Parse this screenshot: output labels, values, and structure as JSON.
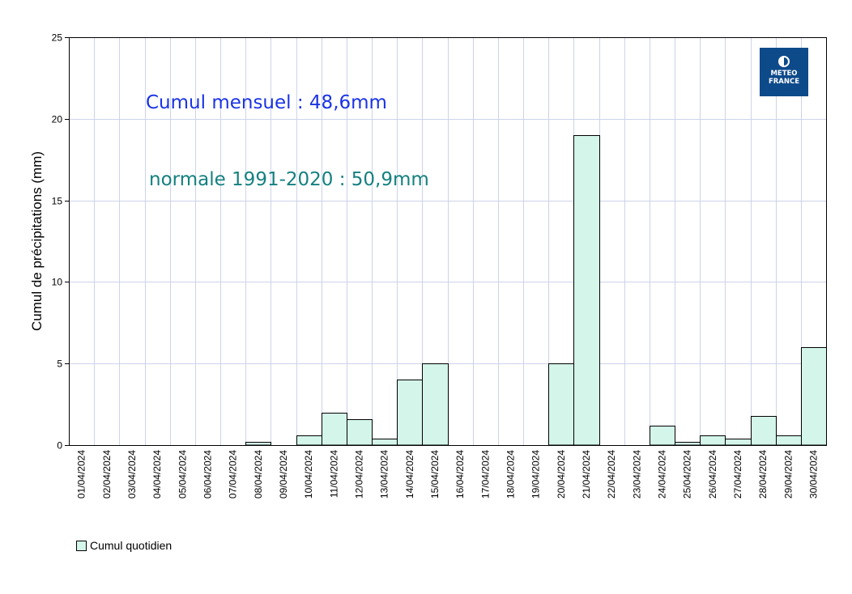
{
  "chart_data": {
    "type": "bar",
    "title": "",
    "xlabel": "",
    "ylabel": "Cumul de précipitations (mm)",
    "ylim": [
      0,
      25
    ],
    "yticks": [
      0,
      5,
      10,
      15,
      20,
      25
    ],
    "grid": true,
    "legend_position": "bottom-left",
    "categories": [
      "01/04/2024",
      "02/04/2024",
      "03/04/2024",
      "04/04/2024",
      "05/04/2024",
      "06/04/2024",
      "07/04/2024",
      "08/04/2024",
      "09/04/2024",
      "10/04/2024",
      "11/04/2024",
      "12/04/2024",
      "13/04/2024",
      "14/04/2024",
      "15/04/2024",
      "16/04/2024",
      "17/04/2024",
      "18/04/2024",
      "19/04/2024",
      "20/04/2024",
      "21/04/2024",
      "22/04/2024",
      "23/04/2024",
      "24/04/2024",
      "25/04/2024",
      "26/04/2024",
      "27/04/2024",
      "28/04/2024",
      "29/04/2024",
      "30/04/2024"
    ],
    "series": [
      {
        "name": "Cumul quotidien",
        "color": "#d4f5e9",
        "values": [
          0,
          0,
          0,
          0,
          0,
          0,
          0,
          0.2,
          0,
          0.6,
          2.0,
          1.6,
          0.4,
          4.0,
          5.0,
          0,
          0,
          0,
          0,
          5.0,
          19.0,
          0,
          0,
          1.2,
          0.2,
          0.6,
          0.4,
          1.8,
          0.6,
          6.0
        ]
      }
    ],
    "annotations": [
      {
        "text": "Cumul mensuel : 48,6mm",
        "color": "#1a33e6"
      },
      {
        "text": "normale 1991-2020 : 50,9mm",
        "color": "#158080"
      }
    ]
  },
  "logo": {
    "line1": "METEO",
    "line2": "FRANCE"
  },
  "colors": {
    "grid": "#cdd3ea",
    "bar_fill": "#d4f5e9",
    "bar_stroke": "#000000",
    "logo_bg": "#0d4a8a"
  }
}
